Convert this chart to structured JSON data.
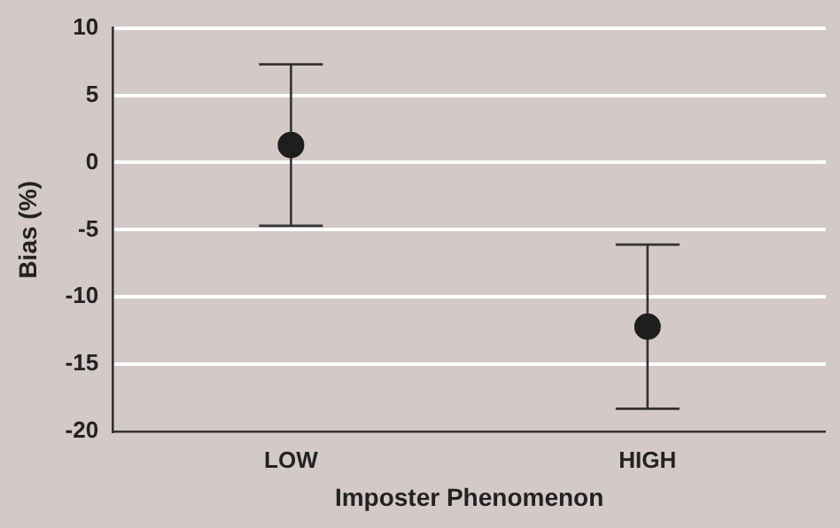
{
  "chart_data": {
    "type": "scatter",
    "xlabel": "Imposter Phenomenon",
    "ylabel": "Bias (%)",
    "categories": [
      "LOW",
      "HIGH"
    ],
    "series": [
      {
        "color": "#1e1e1e",
        "values": [
          1.3,
          -12.2
        ],
        "errors": [
          6,
          6.1
        ]
      }
    ],
    "ylim": [
      -20,
      10
    ],
    "yticks": [
      -20,
      -15,
      -10,
      -5,
      0,
      5,
      10
    ],
    "grid": "y",
    "marker": "circle"
  }
}
